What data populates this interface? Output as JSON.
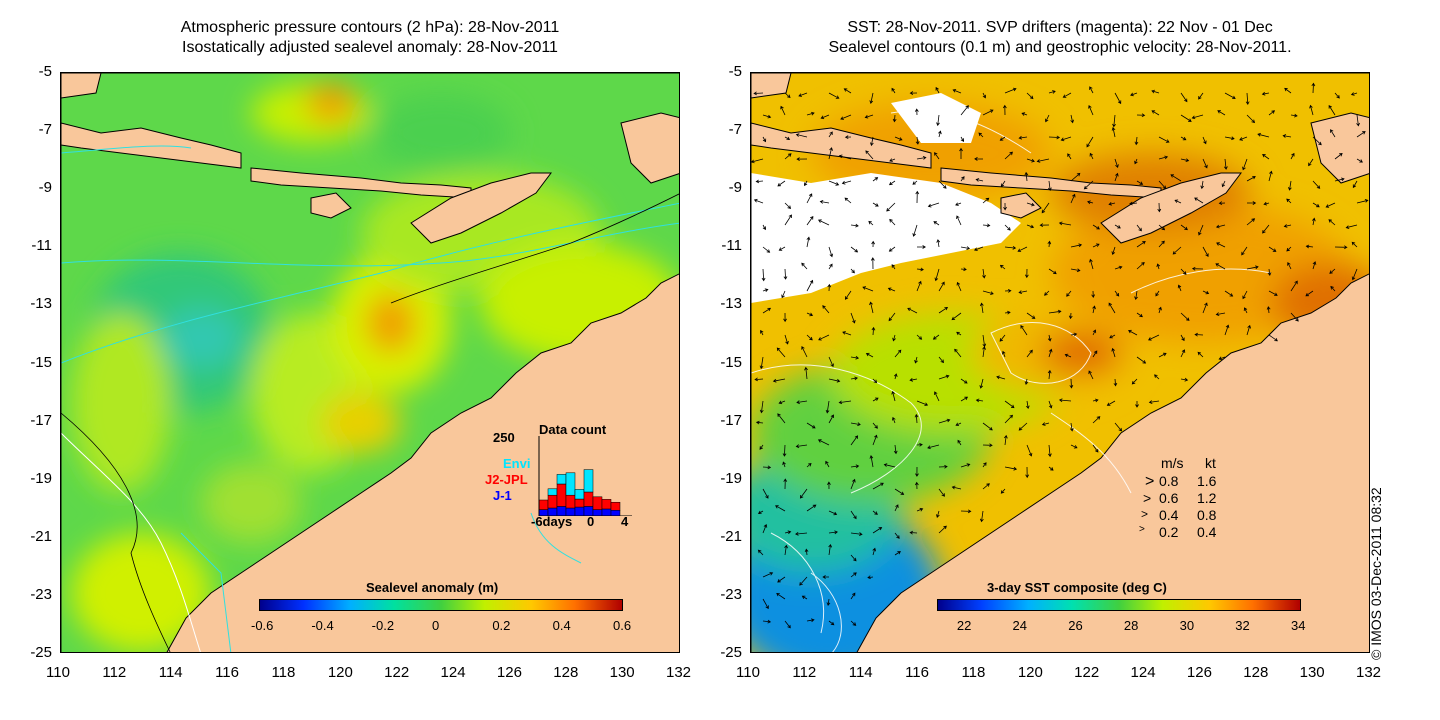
{
  "left_panel": {
    "title_line1": "Atmospheric pressure contours (2 hPa): 28-Nov-2011",
    "title_line2": "Isostatically adjusted sealevel anomaly: 28-Nov-2011",
    "colorbar": {
      "label": "Sealevel anomaly (m)",
      "ticks": [
        "-0.6",
        "-0.4",
        "-0.2",
        "0",
        "0.2",
        "0.4",
        "0.6"
      ],
      "range": [
        -0.6,
        0.6
      ]
    },
    "histogram": {
      "title": "Data count",
      "ymax_label": "250",
      "series_labels": [
        {
          "name": "Envi",
          "color": "#00e5ff"
        },
        {
          "name": "J2-JPL",
          "color": "#ff0000"
        },
        {
          "name": "J-1",
          "color": "#0000ff"
        }
      ],
      "x_labels": [
        "-6days",
        "0",
        "4"
      ],
      "bars": [
        {
          "j1": 20,
          "j2": 30,
          "envi": 0
        },
        {
          "j1": 25,
          "j2": 40,
          "envi": 20
        },
        {
          "j1": 30,
          "j2": 70,
          "envi": 30
        },
        {
          "j1": 25,
          "j2": 40,
          "envi": 70
        },
        {
          "j1": 28,
          "j2": 25,
          "envi": 30
        },
        {
          "j1": 30,
          "j2": 45,
          "envi": 70
        },
        {
          "j1": 20,
          "j2": 40,
          "envi": 0
        },
        {
          "j1": 22,
          "j2": 30,
          "envi": 0
        },
        {
          "j1": 18,
          "j2": 25,
          "envi": 0
        }
      ]
    }
  },
  "right_panel": {
    "title_line1": "SST: 28-Nov-2011. SVP drifters (magenta): 22 Nov - 01 Dec",
    "title_line2": "Sealevel contours (0.1 m) and geostrophic velocity: 28-Nov-2011.",
    "colorbar": {
      "label": "3-day SST composite (deg C)",
      "ticks": [
        "22",
        "24",
        "26",
        "28",
        "30",
        "32",
        "34"
      ],
      "range": [
        21,
        34
      ]
    },
    "velocity_legend": {
      "header_ms": "m/s",
      "header_kt": "kt",
      "rows": [
        {
          "ms": "0.8",
          "kt": "1.6"
        },
        {
          "ms": "0.6",
          "kt": "1.2"
        },
        {
          "ms": "0.4",
          "kt": "0.8"
        },
        {
          "ms": "0.2",
          "kt": "0.4"
        }
      ]
    }
  },
  "axes": {
    "y_labels": [
      "-5",
      "-7",
      "-9",
      "-11",
      "-13",
      "-15",
      "-17",
      "-19",
      "-21",
      "-23",
      "-25"
    ],
    "x_labels": [
      "110",
      "112",
      "114",
      "116",
      "118",
      "120",
      "122",
      "124",
      "126",
      "128",
      "130",
      "132"
    ]
  },
  "copyright": "© IMOS 03-Dec-2011 08:32",
  "colors": {
    "land": "#f9c79b",
    "sea_green": "#40d040",
    "sea_lime": "#b0f000",
    "sst_orange": "#ffa000",
    "contour_cyan": "#30e0e0"
  }
}
